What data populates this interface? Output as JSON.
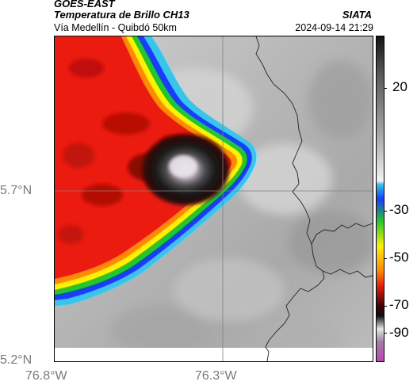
{
  "header": {
    "agency": "GOES-EAST",
    "product": "Temperatura de Brillo CH13",
    "organization": "SIATA",
    "region": "Vía Medellín - Quibdó 50km",
    "timestamp": "2024-09-14 21:29"
  },
  "map": {
    "lat_labels": [
      "5.7°N",
      "5.2°N"
    ],
    "lon_labels": [
      "76.8°W",
      "76.3°W"
    ],
    "lat_range": [
      5.2,
      5.95
    ],
    "lon_range": [
      -76.8,
      -76.1
    ],
    "gridlines": {
      "lat": 5.7,
      "lon": -76.3
    }
  },
  "colorbar": {
    "labels": [
      "20",
      "-30",
      "-50",
      "-70",
      "-90"
    ],
    "unit_range": [
      -95,
      35
    ]
  },
  "colors": {
    "warm_cloud_red": "#ee1c10",
    "cold_core": "#141414",
    "edge_yellow": "#fff000",
    "edge_green": "#22cc22",
    "edge_blue": "#1a3cff",
    "edge_cyan": "#33c8ec",
    "clear_sky_gray": "#bdbdbd",
    "accent_magenta": "#c040c0"
  }
}
